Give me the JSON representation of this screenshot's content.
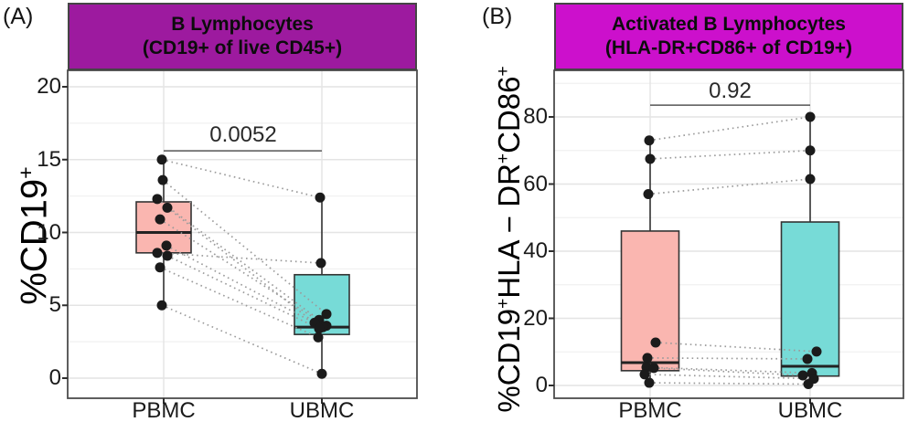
{
  "chart_data": [
    {
      "type": "box",
      "panel_label": "(A)",
      "title_lines": [
        "B Lymphocytes",
        "(CD19+ of live CD45+)"
      ],
      "title_bg": "#9D1A9F",
      "y_axis_title_plain": "%CD19+",
      "y_axis_title_segments": [
        {
          "text": "%CD19",
          "sup": false
        },
        {
          "text": "+",
          "sup": true
        }
      ],
      "groups": [
        "PBMC",
        "UBMC"
      ],
      "y_ticks": [
        0,
        5,
        10,
        15,
        20
      ],
      "ylim": [
        -1.4,
        21.2
      ],
      "grid": "major+minor",
      "p_value": "0.0052",
      "sig_line_y": 15.6,
      "point_color": "#1b1b1b",
      "pair_line_color": "#9b9b9b",
      "boxes": [
        {
          "group": "PBMC",
          "fill": "#FAB6B0",
          "q1": 8.6,
          "median": 10.0,
          "q3": 12.1,
          "whisker_low": 5.0,
          "whisker_high": 15.0
        },
        {
          "group": "UBMC",
          "fill": "#77DBD7",
          "q1": 3.0,
          "median": 3.5,
          "q3": 7.1,
          "whisker_low": 0.3,
          "whisker_high": 12.4
        }
      ],
      "pairs": [
        {
          "a": 15.0,
          "b": 12.4,
          "ja": -2,
          "jb": -2
        },
        {
          "a": 13.6,
          "b": 4.4,
          "ja": -1,
          "jb": 5
        },
        {
          "a": 12.3,
          "b": 4.0,
          "ja": -7,
          "jb": -3
        },
        {
          "a": 11.7,
          "b": 3.8,
          "ja": 4,
          "jb": -8
        },
        {
          "a": 10.9,
          "b": 3.6,
          "ja": -4,
          "jb": 5
        },
        {
          "a": 9.1,
          "b": 3.5,
          "ja": 3,
          "jb": 1
        },
        {
          "a": 8.6,
          "b": 7.9,
          "ja": -7,
          "jb": -1
        },
        {
          "a": 8.4,
          "b": 3.4,
          "ja": 4,
          "jb": -3
        },
        {
          "a": 7.6,
          "b": 2.8,
          "ja": -4,
          "jb": -4
        },
        {
          "a": 5.0,
          "b": 0.3,
          "ja": -2,
          "jb": 0
        }
      ]
    },
    {
      "type": "box",
      "panel_label": "(B)",
      "title_lines": [
        "Activated B Lymphocytes",
        "(HLA-DR+CD86+ of CD19+)"
      ],
      "title_bg": "#CC10CC",
      "y_axis_title_plain": "%CD19+HLA−DR+CD86+",
      "y_axis_title_segments": [
        {
          "text": "%CD19",
          "sup": false
        },
        {
          "text": "+",
          "sup": true
        },
        {
          "text": "HLA − DR",
          "sup": false
        },
        {
          "text": "+",
          "sup": true
        },
        {
          "text": "CD86",
          "sup": false
        },
        {
          "text": "+",
          "sup": true
        }
      ],
      "groups": [
        "PBMC",
        "UBMC"
      ],
      "y_ticks": [
        0,
        20,
        40,
        60,
        80
      ],
      "ylim": [
        -3.8,
        94
      ],
      "grid": "major+minor",
      "p_value": "0.92",
      "sig_line_y": 83.5,
      "point_color": "#1b1b1b",
      "pair_line_color": "#9b9b9b",
      "boxes": [
        {
          "group": "PBMC",
          "fill": "#FAB6B0",
          "q1": 4.4,
          "median": 6.8,
          "q3": 46.0,
          "whisker_low": 0.8,
          "whisker_high": 73.0
        },
        {
          "group": "UBMC",
          "fill": "#77DBD7",
          "q1": 2.8,
          "median": 5.7,
          "q3": 48.7,
          "whisker_low": 0.4,
          "whisker_high": 80.0
        }
      ],
      "pairs": [
        {
          "a": 73.0,
          "b": 80.0,
          "ja": -1,
          "jb": 0
        },
        {
          "a": 67.5,
          "b": 70.0,
          "ja": 0,
          "jb": 0
        },
        {
          "a": 57.0,
          "b": 61.5,
          "ja": -2,
          "jb": 0
        },
        {
          "a": 12.8,
          "b": 10.1,
          "ja": 6,
          "jb": 7
        },
        {
          "a": 8.2,
          "b": 7.9,
          "ja": -3,
          "jb": -3
        },
        {
          "a": 5.4,
          "b": 3.7,
          "ja": -4,
          "jb": 2
        },
        {
          "a": 5.2,
          "b": 3.0,
          "ja": 4,
          "jb": -8
        },
        {
          "a": 3.3,
          "b": 2.0,
          "ja": -6,
          "jb": 4
        },
        {
          "a": 0.8,
          "b": 0.4,
          "ja": -1,
          "jb": -2
        }
      ]
    }
  ]
}
